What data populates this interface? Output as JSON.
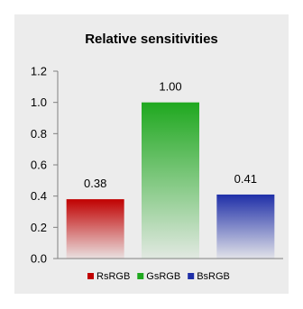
{
  "chart_data": {
    "type": "bar",
    "title": "Relative sensitivities",
    "categories": [
      "RsRGB",
      "GsRGB",
      "BsRGB"
    ],
    "values": [
      0.38,
      1.0,
      0.41
    ],
    "data_labels": [
      "0.38",
      "1.00",
      "0.41"
    ],
    "colors": [
      "#c00000",
      "#1fa81f",
      "#1f2fa8"
    ],
    "ylim": [
      0,
      1.2
    ],
    "yticks": [
      "0.0",
      "0.2",
      "0.4",
      "0.6",
      "0.8",
      "1.0",
      "1.2"
    ],
    "xlabel": "",
    "ylabel": "",
    "grid": false,
    "legend": "bottom"
  }
}
